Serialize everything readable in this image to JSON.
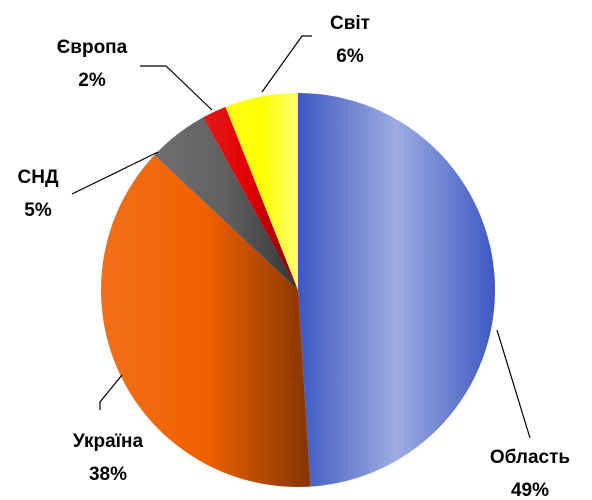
{
  "chart_data": {
    "type": "pie",
    "categories": [
      "Область",
      "Україна",
      "СНД",
      "Європа",
      "Світ"
    ],
    "values": [
      49,
      38,
      5,
      2,
      6
    ],
    "value_labels": [
      "49%",
      "38%",
      "5%",
      "2%",
      "6%"
    ],
    "colors": [
      "#3d58c2",
      "#f06000",
      "#606060",
      "#e00000",
      "#ffff00"
    ]
  }
}
